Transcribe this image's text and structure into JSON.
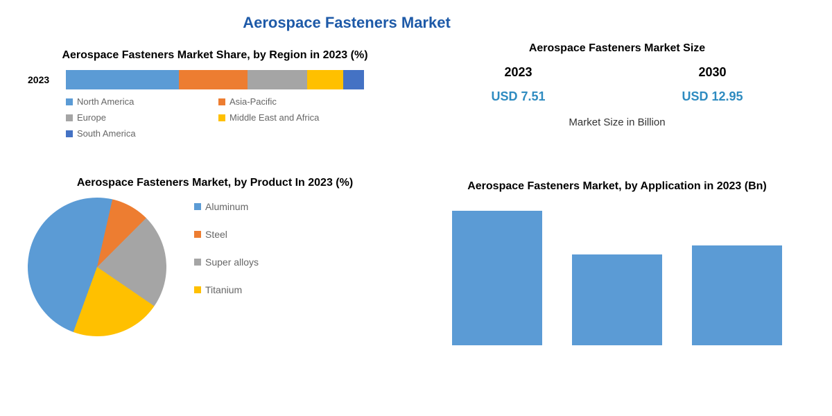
{
  "main_title": "Aerospace Fasteners Market",
  "region_chart": {
    "title": "Aerospace Fasteners Market Share, by Region in 2023 (%)",
    "year_label": "2023",
    "segments": [
      {
        "name": "North America",
        "value": 38,
        "color": "#5b9bd5"
      },
      {
        "name": "Asia-Pacific",
        "value": 23,
        "color": "#ed7d31"
      },
      {
        "name": "Europe",
        "value": 20,
        "color": "#a5a5a5"
      },
      {
        "name": "Middle East and Africa",
        "value": 12,
        "color": "#ffc000"
      },
      {
        "name": "South America",
        "value": 7,
        "color": "#4472c4"
      }
    ]
  },
  "market_size": {
    "title": "Aerospace Fasteners Market Size",
    "caption": "Market Size in Billion",
    "cols": [
      {
        "year": "2023",
        "value": "USD 7.51",
        "color": "#2e8bc0"
      },
      {
        "year": "2030",
        "value": "USD 12.95",
        "color": "#2e8bc0"
      }
    ]
  },
  "product_chart": {
    "title": "Aerospace Fasteners Market, by Product In 2023 (%)",
    "type": "pie",
    "slices": [
      {
        "name": "Aluminum",
        "value": 48,
        "color": "#5b9bd5"
      },
      {
        "name": "Steel",
        "value": 9,
        "color": "#ed7d31"
      },
      {
        "name": "Super alloys",
        "value": 22,
        "color": "#a5a5a5"
      },
      {
        "name": "Titanium",
        "value": 21,
        "color": "#ffc000"
      }
    ]
  },
  "application_chart": {
    "title": "Aerospace Fasteners Market, by Application in 2023 (Bn)",
    "type": "bar",
    "bar_color": "#5b9bd5",
    "max_value": 3.2,
    "bars": [
      {
        "value": 3.1
      },
      {
        "value": 2.1
      },
      {
        "value": 2.3
      }
    ]
  }
}
